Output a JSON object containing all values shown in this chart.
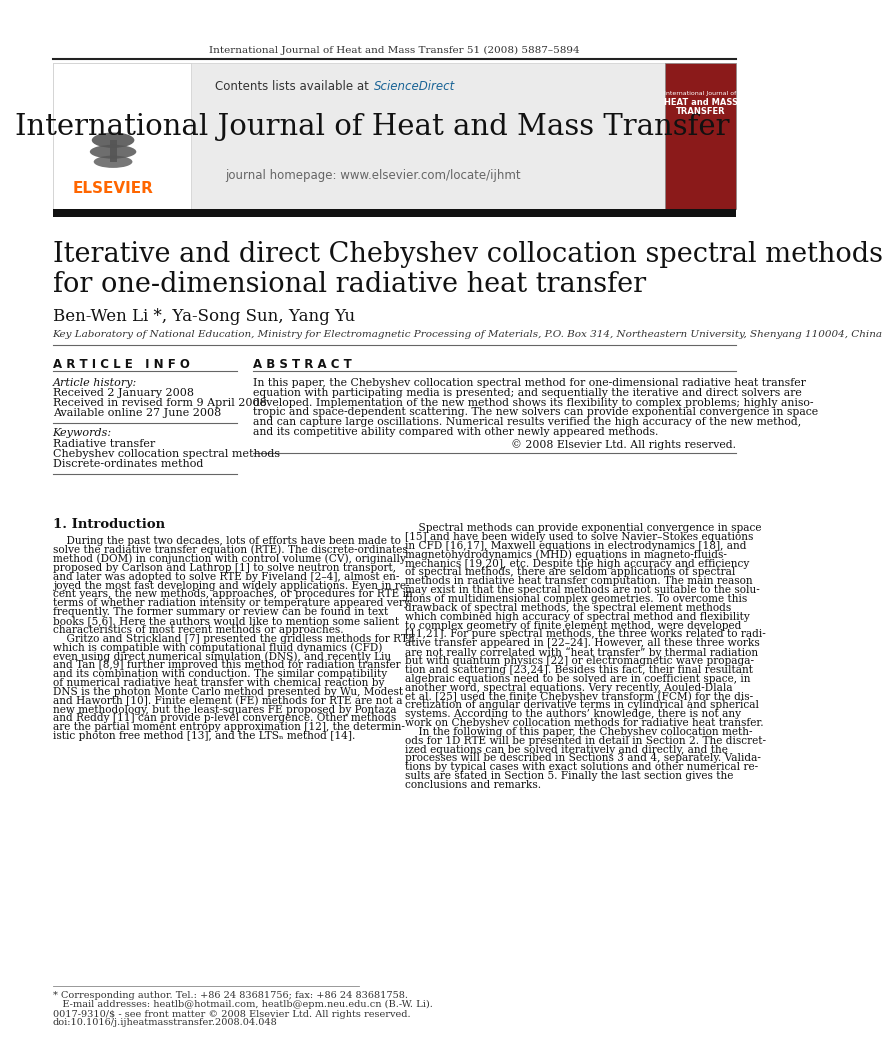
{
  "journal_line": "International Journal of Heat and Mass Transfer 51 (2008) 5887–5894",
  "journal_name": "International Journal of Heat and Mass Transfer",
  "journal_homepage": "journal homepage: www.elsevier.com/locate/ijhmt",
  "contents_line": "Contents lists available at ",
  "sciencedirect": "ScienceDirect",
  "paper_title_line1": "Iterative and direct Chebyshev collocation spectral methods",
  "paper_title_line2": "for one-dimensional radiative heat transfer",
  "authors": "Ben-Wen Li *, Ya-Song Sun, Yang Yu",
  "affiliation": "Key Laboratory of National Education, Ministry for Electromagnetic Processing of Materials, P.O. Box 314, Northeastern University, Shenyang 110004, China",
  "article_info_title": "A R T I C L E   I N F O",
  "abstract_title": "A B S T R A C T",
  "article_history_label": "Article history:",
  "received1": "Received 2 January 2008",
  "received2": "Received in revised form 9 April 2008",
  "available": "Available online 27 June 2008",
  "keywords_label": "Keywords:",
  "keyword1": "Radiative transfer",
  "keyword2": "Chebyshev collocation spectral methods",
  "keyword3": "Discrete-ordinates method",
  "abstract_text": "In this paper, the Chebyshev collocation spectral method for one-dimensional radiative heat transfer\nequation with participating media is presented; and sequentially the iterative and direct solvers are\ndeveloped. Implementation of the new method shows its flexibility to complex problems; highly aniso-\ntropic and space-dependent scattering. The new solvers can provide exponential convergence in space\nand can capture large oscillations. Numerical results verified the high accuracy of the new method,\nand its competitive ability compared with other newly appeared methods.",
  "copyright": "© 2008 Elsevier Ltd. All rights reserved.",
  "section1_title": "1. Introduction",
  "footer_note1": "* Corresponding author. Tel.: +86 24 83681756; fax: +86 24 83681758.",
  "footer_note2": "   E-mail addresses: heatlb@hotmail.com, heatlb@epm.neu.edu.cn (B.-W. Li).",
  "footer_issn": "0017-9310/$ - see front matter © 2008 Elsevier Ltd. All rights reserved.",
  "footer_doi": "doi:10.1016/j.ijheatmasstransfer.2008.04.048",
  "elsevier_color": "#ff6600",
  "sciencedirect_color": "#1a6496",
  "dark_red_cover": "#8b1a1a",
  "intro_col1_lines": [
    "    During the past two decades, lots of efforts have been made to",
    "solve the radiative transfer equation (RTE). The discrete-ordinates",
    "method (DOM) in conjunction with control volume (CV), originally",
    "proposed by Carlson and Lathrop [1] to solve neutron transport,",
    "and later was adopted to solve RTE by Fiveland [2–4], almost en-",
    "joyed the most fast developing and widely applications. Even in re-",
    "cent years, the new methods, approaches, or procedures for RTE in",
    "terms of whether radiation intensity or temperature appeared very",
    "frequently. The former summary or review can be found in text",
    "books [5,6]. Here the authors would like to mention some salient",
    "characteristics of most recent methods or approaches.",
    "    Gritzo and Strickland [7] presented the gridless methods for RTE",
    "which is compatible with computational fluid dynamics (CFD)",
    "even using direct numerical simulation (DNS), and recently Liu",
    "and Tan [8,9] further improved this method for radiation transfer",
    "and its combination with conduction. The similar compatibility",
    "of numerical radiative heat transfer with chemical reaction by",
    "DNS is the photon Monte Carlo method presented by Wu, Modest",
    "and Haworth [10]. Finite element (FE) methods for RTE are not a",
    "new methodology, but the least-squares FE proposed by Pontaza",
    "and Reddy [11] can provide p-level convergence. Other methods",
    "are the partial moment entropy approximation [12], the determin-",
    "istic photon free method [13], and the LTSₙ method [14]."
  ],
  "intro_col2_lines": [
    "    Spectral methods can provide exponential convergence in space",
    "[15] and have been widely used to solve Navier–Stokes equations",
    "in CFD [16,17], Maxwell equations in electrodynamics [18], and",
    "magnetohydrodynamics (MHD) equations in magneto-fluids-",
    "mechanics [19,20], etc. Despite the high accuracy and efficiency",
    "of spectral methods, there are seldom applications of spectral",
    "methods in radiative heat transfer computation. The main reason",
    "may exist in that the spectral methods are not suitable to the solu-",
    "tions of multidimensional complex geometries. To overcome this",
    "drawback of spectral methods, the spectral element methods",
    "which combined high accuracy of spectral method and flexibility",
    "to complex geometry of finite element method, were developed",
    "[11,21]. For pure spectral methods, the three works related to radi-",
    "ative transfer appeared in [22–24]. However, all these three works",
    "are not really correlated with “heat transfer” by thermal radiation",
    "but with quantum physics [22] or electromagnetic wave propaga-",
    "tion and scattering [23,24]. Besides this fact, their final resultant",
    "algebraic equations need to be solved are in coefficient space, in",
    "another word, spectral equations. Very recently, Aouled-Dlala",
    "et al. [25] used the finite Chebyshev transform (FCM) for the dis-",
    "cretization of angular derivative terms in cylindrical and spherical",
    "systems. According to the authors’ knowledge, there is not any",
    "work on Chebyshev collocation methods for radiative heat transfer.",
    "    In the following of this paper, the Chebyshev collocation meth-",
    "ods for 1D RTE will be presented in detail in Section 2. The discret-",
    "ized equations can be solved iteratively and directly, and the",
    "processes will be described in Sections 3 and 4, separately. Valida-",
    "tions by typical cases with exact solutions and other numerical re-",
    "sults are stated in Section 5. Finally the last section gives the",
    "conclusions and remarks."
  ]
}
